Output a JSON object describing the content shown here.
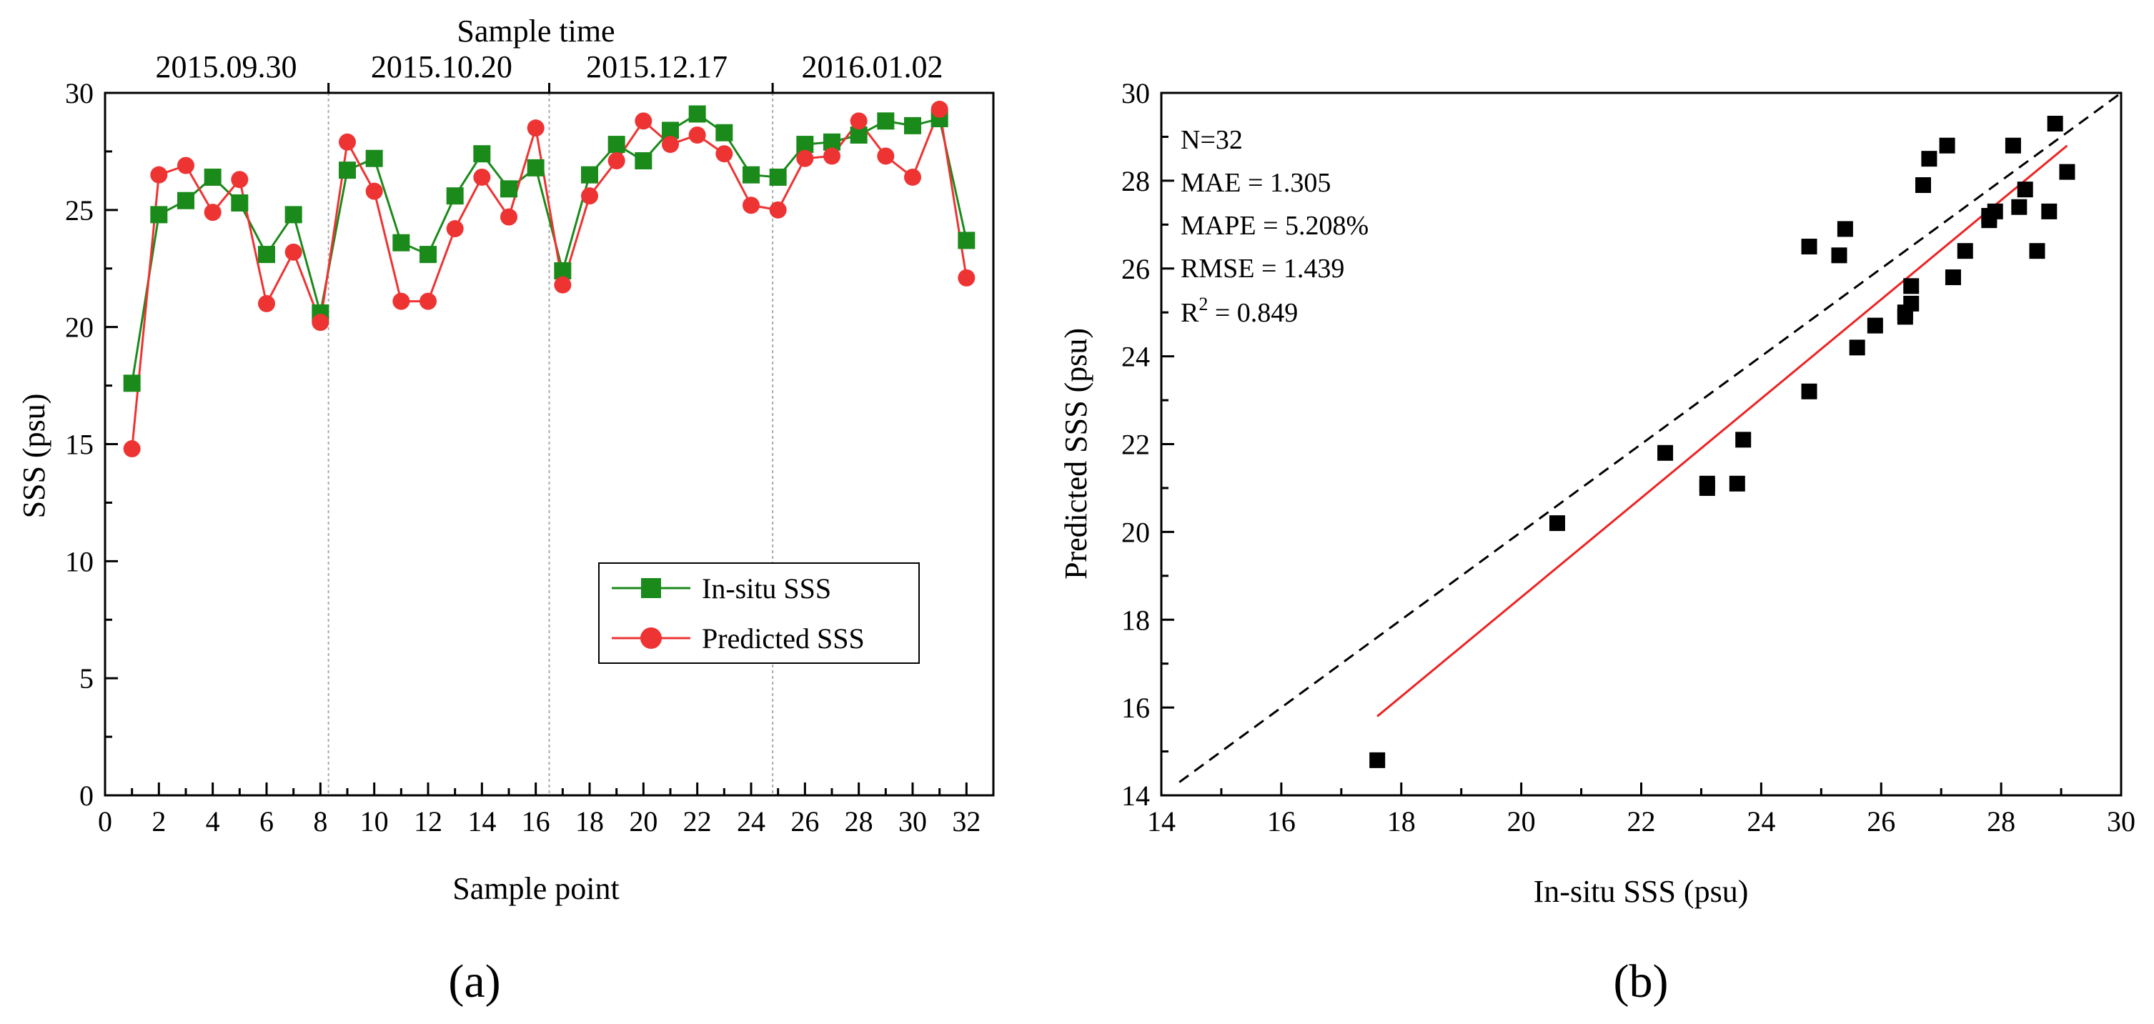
{
  "chart_data": [
    {
      "id": "a",
      "type": "line",
      "panel_label": "(a)",
      "xlabel": "Sample point",
      "ylabel": "SSS (psu)",
      "top_axis_label": "Sample time",
      "xlim": [
        0,
        33
      ],
      "ylim": [
        0,
        30
      ],
      "x_ticks": [
        0,
        2,
        4,
        6,
        8,
        10,
        12,
        14,
        16,
        18,
        20,
        22,
        24,
        26,
        28,
        30,
        32
      ],
      "y_ticks": [
        0,
        5,
        10,
        15,
        20,
        25,
        30
      ],
      "sample_times": [
        {
          "label": "2015.09.30",
          "center": 4.5
        },
        {
          "label": "2015.10.20",
          "center": 12.5
        },
        {
          "label": "2015.12.17",
          "center": 20.5
        },
        {
          "label": "2016.01.02",
          "center": 28.5
        }
      ],
      "separators": [
        8.3,
        16.5,
        24.8
      ],
      "x": [
        1,
        2,
        3,
        4,
        5,
        6,
        7,
        8,
        9,
        10,
        11,
        12,
        13,
        14,
        15,
        16,
        17,
        18,
        19,
        20,
        21,
        22,
        23,
        24,
        25,
        26,
        27,
        28,
        29,
        30,
        31,
        32
      ],
      "series": [
        {
          "name": "In-situ SSS",
          "color": "#1a8a1a",
          "marker": "square",
          "values": [
            17.6,
            24.8,
            25.4,
            26.4,
            25.3,
            23.1,
            24.8,
            20.6,
            26.7,
            27.2,
            23.6,
            23.1,
            25.6,
            27.4,
            25.9,
            26.8,
            22.4,
            26.5,
            27.8,
            27.1,
            28.4,
            29.1,
            28.3,
            26.5,
            26.4,
            27.8,
            27.9,
            28.2,
            28.8,
            28.6,
            28.9,
            23.7
          ]
        },
        {
          "name": "Predicted SSS",
          "color": "#ee3333",
          "marker": "circle",
          "values": [
            14.8,
            26.5,
            26.9,
            24.9,
            26.3,
            21.0,
            23.2,
            20.2,
            27.9,
            25.8,
            21.1,
            21.1,
            24.2,
            26.4,
            24.7,
            28.5,
            21.8,
            25.6,
            27.1,
            28.8,
            27.8,
            28.2,
            27.4,
            25.2,
            25.0,
            27.2,
            27.3,
            28.8,
            27.3,
            26.4,
            29.3,
            22.1
          ]
        }
      ],
      "legend_position": "lower-right"
    },
    {
      "id": "b",
      "type": "scatter",
      "panel_label": "(b)",
      "xlabel": "In-situ SSS (psu)",
      "ylabel": "Predicted SSS (psu)",
      "xlim": [
        14,
        30
      ],
      "ylim": [
        14,
        30
      ],
      "x_ticks": [
        14,
        16,
        18,
        20,
        22,
        24,
        26,
        28,
        30
      ],
      "y_ticks": [
        14,
        16,
        18,
        20,
        22,
        24,
        26,
        28,
        30
      ],
      "stats": {
        "n": "N=32",
        "mae": "MAE = 1.305",
        "mape": "MAPE = 5.208%",
        "rmse": "RMSE = 1.439",
        "r2_prefix": "R",
        "r2_sup": "2",
        "r2_suffix": " = 0.849"
      },
      "points": [
        [
          17.6,
          14.8
        ],
        [
          24.8,
          26.5
        ],
        [
          25.4,
          26.9
        ],
        [
          26.4,
          24.9
        ],
        [
          25.3,
          26.3
        ],
        [
          23.1,
          21.0
        ],
        [
          24.8,
          23.2
        ],
        [
          20.6,
          20.2
        ],
        [
          26.7,
          27.9
        ],
        [
          27.2,
          25.8
        ],
        [
          23.6,
          21.1
        ],
        [
          23.1,
          21.1
        ],
        [
          25.6,
          24.2
        ],
        [
          27.4,
          26.4
        ],
        [
          25.9,
          24.7
        ],
        [
          26.8,
          28.5
        ],
        [
          22.4,
          21.8
        ],
        [
          26.5,
          25.6
        ],
        [
          27.8,
          27.1
        ],
        [
          27.1,
          28.8
        ],
        [
          28.4,
          27.8
        ],
        [
          29.1,
          28.2
        ],
        [
          28.3,
          27.4
        ],
        [
          26.5,
          25.2
        ],
        [
          26.4,
          25.0
        ],
        [
          27.8,
          27.2
        ],
        [
          27.9,
          27.3
        ],
        [
          28.2,
          28.8
        ],
        [
          28.8,
          27.3
        ],
        [
          28.6,
          26.4
        ],
        [
          28.9,
          29.3
        ],
        [
          23.7,
          22.1
        ]
      ],
      "identity_line": {
        "from": 14.3,
        "to": 30,
        "style": "dashed",
        "color": "#000000"
      },
      "fit_line": {
        "x": [
          17.6,
          29.1
        ],
        "y": [
          15.8,
          28.8
        ],
        "color": "#ee2222"
      },
      "marker_color": "#000000"
    }
  ]
}
